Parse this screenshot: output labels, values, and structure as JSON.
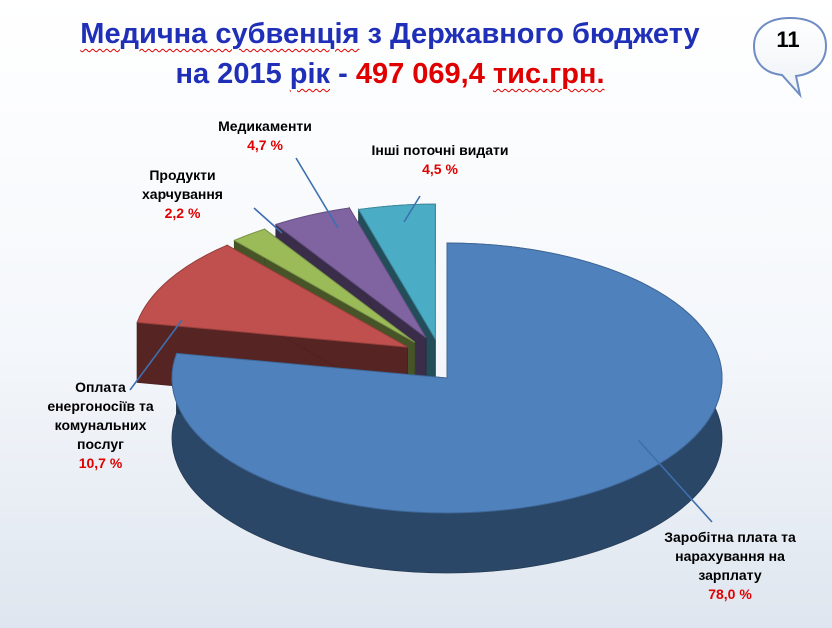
{
  "title": {
    "line1_a": "Медична субвенція",
    "line1_b": " з Державного бюджету",
    "line2_a": "на 2015 ",
    "line2_b": "рік",
    "line2_c": " - ",
    "line2_d": "497 069,4 ",
    "line2_e": "тис.грн."
  },
  "slide_number": "11",
  "colors": {
    "title": "#1f2fb8",
    "percent": "#e00000"
  },
  "chart_data": {
    "type": "pie",
    "style": "3d-exploded",
    "unit": "%",
    "slices": [
      {
        "name": "Заробітна плата та нарахування на зарплату",
        "value": 78.0,
        "label": "78,0 %",
        "color": "#4f81bd",
        "name_lines": [
          "Заробітна плата та",
          "нарахування на",
          "зарплату"
        ]
      },
      {
        "name": "Оплата енергоносіїв та комунальних послуг",
        "value": 10.7,
        "label": "10,7 %",
        "color": "#c0504d",
        "name_lines": [
          "Оплата",
          "енергоносіїв та",
          "комунальних",
          "послуг"
        ]
      },
      {
        "name": "Продукти харчування",
        "value": 2.2,
        "label": "2,2 %",
        "color": "#9bbb59",
        "name_lines": [
          "Продукти",
          "харчування"
        ]
      },
      {
        "name": "Медикаменти",
        "value": 4.7,
        "label": "4,7 %",
        "color": "#8064a2",
        "name_lines": [
          "Медикаменти"
        ]
      },
      {
        "name": "Інші поточні видати",
        "value": 4.5,
        "label": "4,5 %",
        "color": "#4bacc6",
        "name_lines": [
          "Інші поточні видати"
        ]
      }
    ]
  }
}
